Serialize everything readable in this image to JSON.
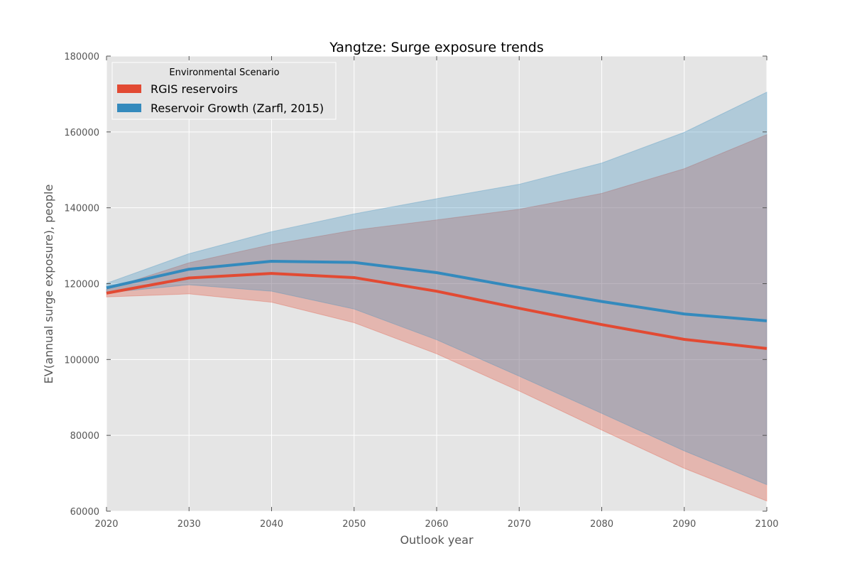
{
  "chart_data": {
    "type": "line",
    "title": "Yangtze: Surge exposure trends",
    "xlabel": "Outlook year",
    "ylabel": "EV(annual surge exposure), people",
    "xlim": [
      2020,
      2100
    ],
    "ylim": [
      60000,
      180000
    ],
    "xticks": [
      2020,
      2030,
      2040,
      2050,
      2060,
      2070,
      2080,
      2090,
      2100
    ],
    "yticks": [
      60000,
      80000,
      100000,
      120000,
      140000,
      160000,
      180000
    ],
    "grid": true,
    "legend": {
      "title": "Environmental Scenario",
      "placement": "upper-left"
    },
    "x": [
      2020,
      2030,
      2040,
      2050,
      2060,
      2070,
      2080,
      2090,
      2100
    ],
    "series": [
      {
        "name": "RGIS reservoirs",
        "color": "#E24A33",
        "values": [
          117500,
          121500,
          122700,
          121600,
          118000,
          113500,
          109200,
          105300,
          102900
        ],
        "band_low": [
          116500,
          117300,
          115100,
          109700,
          101500,
          91700,
          81400,
          71300,
          62700
        ],
        "band_high": [
          118500,
          125500,
          130300,
          134100,
          136800,
          139600,
          143800,
          150300,
          159300
        ]
      },
      {
        "name": "Reservoir Growth (Zarfl, 2015)",
        "color": "#348ABD",
        "values": [
          118900,
          123800,
          125900,
          125600,
          122900,
          119000,
          115300,
          112000,
          110200
        ],
        "band_low": [
          117600,
          119700,
          118000,
          113300,
          105200,
          95600,
          85800,
          75900,
          67000
        ],
        "band_high": [
          120100,
          127900,
          133700,
          138400,
          142400,
          146200,
          151800,
          159900,
          170500
        ]
      }
    ]
  }
}
